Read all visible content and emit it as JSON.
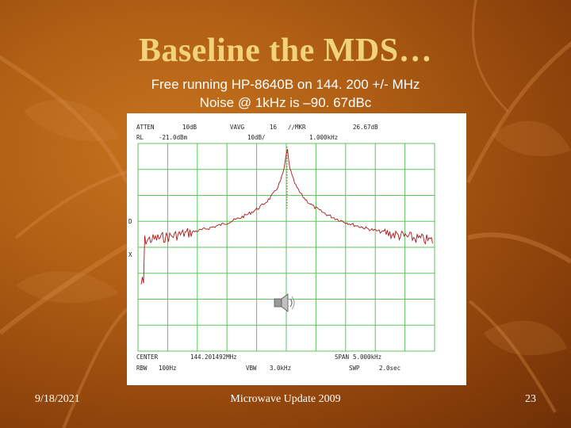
{
  "slide": {
    "title": "Baseline the MDS…",
    "subtitle_line1": "Free running HP-8640B on 144. 200 +/- MHz",
    "subtitle_line2": "Noise @ 1kHz is –90. 67dBc"
  },
  "analyzer": {
    "header_row1": {
      "attn_label": "ATTEN",
      "attn_value": "10dB",
      "vavg_label": "VAVG",
      "vavg_value": "16",
      "mkr_label": "∕∕MKR",
      "mkr_value": "26.67dB"
    },
    "header_row2": {
      "rl_label": "RL",
      "rl_value": "-21.0dBm",
      "scale_value": "10dB/",
      "mkr_freq": "1.000kHz"
    },
    "side_marks": [
      "D",
      "X"
    ],
    "footer_row1": {
      "center_label": "CENTER",
      "center_value": "144.201492MHz",
      "span_label": "SPAN",
      "span_value": "5.000kHz"
    },
    "footer_row2": {
      "rbw_label": "RBW",
      "rbw_value": "100Hz",
      "vbw_label": "VBW",
      "vbw_value": "3.0kHz",
      "swp_label": "SWP",
      "swp_value": "2.0sec"
    },
    "trace_color": "#b01818",
    "grid_color": "#5fc35f"
  },
  "footer": {
    "date": "9/18/2021",
    "center": "Microwave Update 2009",
    "page": "23"
  }
}
